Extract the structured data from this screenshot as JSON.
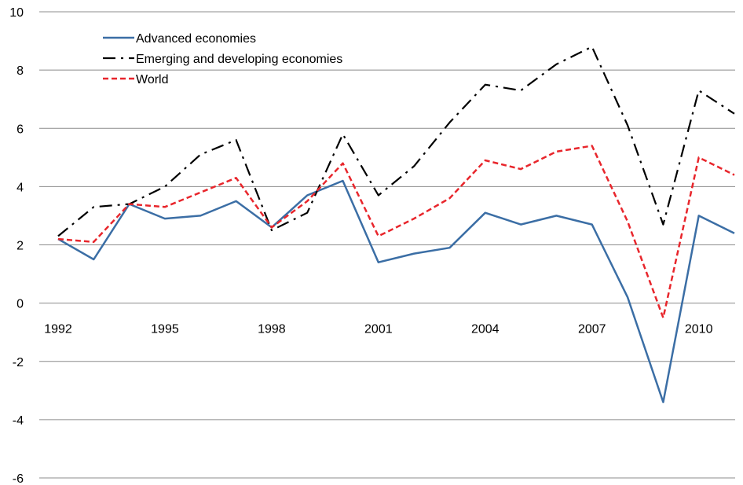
{
  "chart_data": {
    "type": "line",
    "x": [
      1992,
      1993,
      1994,
      1995,
      1996,
      1997,
      1998,
      1999,
      2000,
      2001,
      2002,
      2003,
      2004,
      2005,
      2006,
      2007,
      2008,
      2009,
      2010,
      2011
    ],
    "x_tick_labels": [
      "1992",
      "1995",
      "1998",
      "2001",
      "2004",
      "2007",
      "2010"
    ],
    "x_tick_values": [
      1992,
      1995,
      1998,
      2001,
      2004,
      2007,
      2010
    ],
    "y_tick_labels": [
      "10",
      "8",
      "6",
      "4",
      "2",
      "0",
      "-2",
      "-4",
      "-6"
    ],
    "y_tick_values": [
      10,
      8,
      6,
      4,
      2,
      0,
      -2,
      -4,
      -6
    ],
    "ylim": [
      -6,
      10
    ],
    "xlim": [
      1992,
      2011
    ],
    "grid": "horizontal",
    "legend_position": "top-left",
    "title": "",
    "xlabel": "",
    "ylabel": "",
    "series": [
      {
        "name": "Advanced economies",
        "color": "#3b6ea5",
        "style": "solid",
        "values": [
          2.2,
          1.5,
          3.4,
          2.9,
          3.0,
          3.5,
          2.6,
          3.7,
          4.2,
          1.4,
          1.7,
          1.9,
          3.1,
          2.7,
          3.0,
          2.7,
          0.2,
          -3.4,
          3.0,
          2.4
        ]
      },
      {
        "name": "Emerging and developing economies",
        "color": "#000000",
        "style": "dashdot",
        "values": [
          2.3,
          3.3,
          3.4,
          4.0,
          5.1,
          5.6,
          2.5,
          3.1,
          5.8,
          3.7,
          4.7,
          6.2,
          7.5,
          7.3,
          8.2,
          8.8,
          6.1,
          2.7,
          7.3,
          6.5
        ]
      },
      {
        "name": "World",
        "color": "#e8262c",
        "style": "dashed",
        "values": [
          2.2,
          2.1,
          3.4,
          3.3,
          3.8,
          4.3,
          2.6,
          3.5,
          4.8,
          2.3,
          2.9,
          3.6,
          4.9,
          4.6,
          5.2,
          5.4,
          2.8,
          -0.5,
          5.0,
          4.4
        ]
      }
    ]
  }
}
